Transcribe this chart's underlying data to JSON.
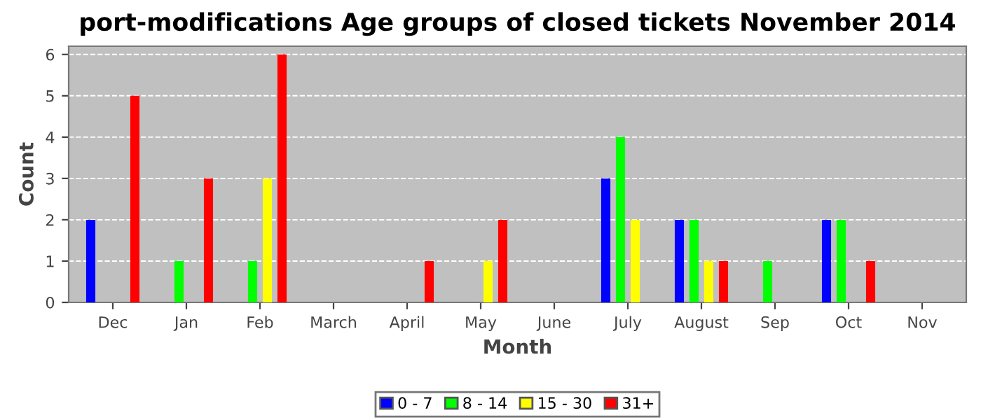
{
  "chart_data": {
    "type": "bar",
    "title": "port-modifications Age groups of closed tickets November 2014",
    "xlabel": "Month",
    "ylabel": "Count",
    "categories": [
      "Dec",
      "Jan",
      "Feb",
      "March",
      "April",
      "May",
      "June",
      "July",
      "August",
      "Sep",
      "Oct",
      "Nov"
    ],
    "series": [
      {
        "name": "0 - 7",
        "color": "#0000ff",
        "values": [
          2,
          0,
          0,
          0,
          0,
          0,
          0,
          3,
          2,
          0,
          2,
          0
        ]
      },
      {
        "name": "8 - 14",
        "color": "#00ff00",
        "values": [
          0,
          1,
          1,
          0,
          0,
          0,
          0,
          4,
          2,
          1,
          2,
          0
        ]
      },
      {
        "name": "15 - 30",
        "color": "#ffff00",
        "values": [
          0,
          0,
          3,
          0,
          0,
          1,
          0,
          2,
          1,
          0,
          0,
          0
        ]
      },
      {
        "name": "31+",
        "color": "#ff0000",
        "values": [
          5,
          3,
          6,
          0,
          1,
          2,
          0,
          0,
          1,
          0,
          1,
          0
        ]
      }
    ],
    "ylim": [
      0,
      6.2
    ],
    "yticks": [
      0,
      1,
      2,
      3,
      4,
      5,
      6
    ],
    "grid": "y",
    "legend": "bottom"
  }
}
